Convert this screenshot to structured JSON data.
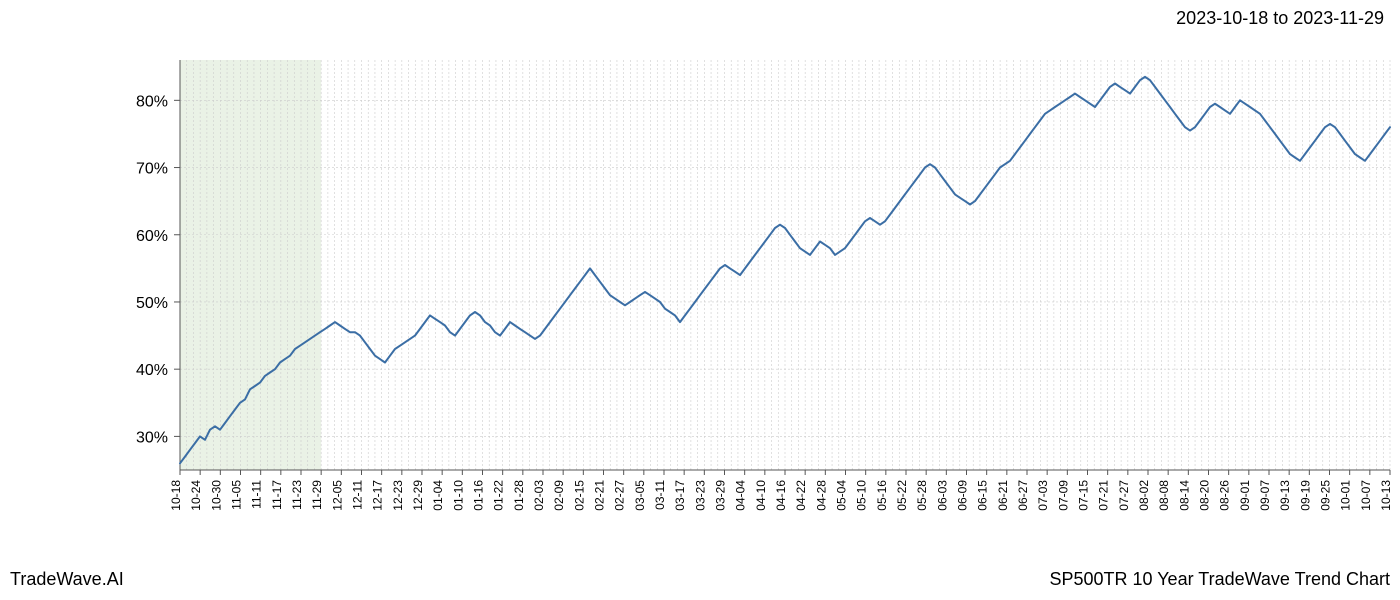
{
  "date_range": "2023-10-18 to 2023-11-29",
  "footer_left": "TradeWave.AI",
  "footer_right": "SP500TR 10 Year TradeWave Trend Chart",
  "chart": {
    "type": "line",
    "background_color": "#ffffff",
    "line_color": "#3b6ea5",
    "line_width": 2,
    "highlight_band": {
      "fill": "#d9e8d2",
      "opacity": 0.55,
      "x_start": "10-18",
      "x_end": "11-29"
    },
    "grid": {
      "color": "#cccccc",
      "dash": "2,2",
      "stroke_width": 0.6
    },
    "axis_color": "#555555",
    "y_axis": {
      "ticks": [
        30,
        40,
        50,
        60,
        70,
        80
      ],
      "tick_suffix": "%",
      "fontsize": 16,
      "ylim": [
        25,
        86
      ]
    },
    "x_axis": {
      "fontsize": 12,
      "rotate": -90,
      "labels": [
        "10-18",
        "10-24",
        "10-30",
        "11-05",
        "11-11",
        "11-17",
        "11-23",
        "11-29",
        "12-05",
        "12-11",
        "12-17",
        "12-23",
        "12-29",
        "01-04",
        "01-10",
        "01-16",
        "01-22",
        "01-28",
        "02-03",
        "02-09",
        "02-15",
        "02-21",
        "02-27",
        "03-05",
        "03-11",
        "03-17",
        "03-23",
        "03-29",
        "04-04",
        "04-10",
        "04-16",
        "04-22",
        "04-28",
        "05-04",
        "05-10",
        "05-16",
        "05-22",
        "05-28",
        "06-03",
        "06-09",
        "06-15",
        "06-21",
        "06-27",
        "07-03",
        "07-09",
        "07-15",
        "07-21",
        "07-27",
        "08-02",
        "08-08",
        "08-14",
        "08-20",
        "08-26",
        "09-01",
        "09-07",
        "09-13",
        "09-19",
        "09-25",
        "10-01",
        "10-07",
        "10-13"
      ]
    },
    "series": {
      "name": "SP500TR",
      "values": [
        26,
        27,
        28,
        29,
        30,
        29.5,
        31,
        31.5,
        31,
        32,
        33,
        34,
        35,
        35.5,
        37,
        37.5,
        38,
        39,
        39.5,
        40,
        41,
        41.5,
        42,
        43,
        43.5,
        44,
        44.5,
        45,
        45.5,
        46,
        46.5,
        47,
        46.5,
        46,
        45.5,
        45.5,
        45,
        44,
        43,
        42,
        41.5,
        41,
        42,
        43,
        43.5,
        44,
        44.5,
        45,
        46,
        47,
        48,
        47.5,
        47,
        46.5,
        45.5,
        45,
        46,
        47,
        48,
        48.5,
        48,
        47,
        46.5,
        45.5,
        45,
        46,
        47,
        46.5,
        46,
        45.5,
        45,
        44.5,
        45,
        46,
        47,
        48,
        49,
        50,
        51,
        52,
        53,
        54,
        55,
        54,
        53,
        52,
        51,
        50.5,
        50,
        49.5,
        50,
        50.5,
        51,
        51.5,
        51,
        50.5,
        50,
        49,
        48.5,
        48,
        47,
        48,
        49,
        50,
        51,
        52,
        53,
        54,
        55,
        55.5,
        55,
        54.5,
        54,
        55,
        56,
        57,
        58,
        59,
        60,
        61,
        61.5,
        61,
        60,
        59,
        58,
        57.5,
        57,
        58,
        59,
        58.5,
        58,
        57,
        57.5,
        58,
        59,
        60,
        61,
        62,
        62.5,
        62,
        61.5,
        62,
        63,
        64,
        65,
        66,
        67,
        68,
        69,
        70,
        70.5,
        70,
        69,
        68,
        67,
        66,
        65.5,
        65,
        64.5,
        65,
        66,
        67,
        68,
        69,
        70,
        70.5,
        71,
        72,
        73,
        74,
        75,
        76,
        77,
        78,
        78.5,
        79,
        79.5,
        80,
        80.5,
        81,
        80.5,
        80,
        79.5,
        79,
        80,
        81,
        82,
        82.5,
        82,
        81.5,
        81,
        82,
        83,
        83.5,
        83,
        82,
        81,
        80,
        79,
        78,
        77,
        76,
        75.5,
        76,
        77,
        78,
        79,
        79.5,
        79,
        78.5,
        78,
        79,
        80,
        79.5,
        79,
        78.5,
        78,
        77,
        76,
        75,
        74,
        73,
        72,
        71.5,
        71,
        72,
        73,
        74,
        75,
        76,
        76.5,
        76,
        75,
        74,
        73,
        72,
        71.5,
        71,
        72,
        73,
        74,
        75,
        76
      ]
    }
  }
}
